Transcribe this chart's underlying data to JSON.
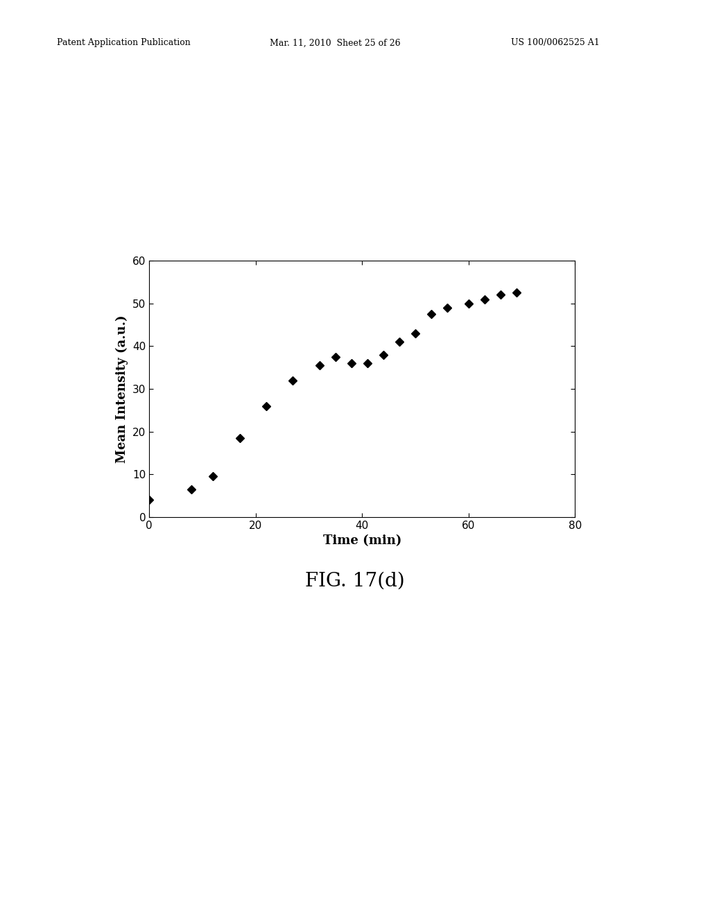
{
  "x": [
    0,
    8,
    12,
    17,
    22,
    27,
    32,
    35,
    38,
    41,
    44,
    47,
    50,
    53,
    56,
    60,
    63,
    66,
    69
  ],
  "y": [
    4,
    6.5,
    9.5,
    18.5,
    26,
    32,
    35.5,
    37.5,
    36,
    36,
    38,
    41,
    43,
    47.5,
    49,
    50,
    51,
    52,
    52.5
  ],
  "xlabel": "Time (min)",
  "ylabel": "Mean Intensity (a.u.)",
  "fig_label": "FIG. 17(d)",
  "header_left": "Patent Application Publication",
  "header_center": "Mar. 11, 2010  Sheet 25 of 26",
  "header_right": "US 100/0062525 A1",
  "xlim": [
    0,
    80
  ],
  "ylim": [
    0,
    60
  ],
  "xticks": [
    0,
    20,
    40,
    60,
    80
  ],
  "yticks": [
    0,
    10,
    20,
    30,
    40,
    50,
    60
  ],
  "marker": "D",
  "marker_color": "#000000",
  "marker_size": 6,
  "background_color": "#ffffff",
  "xlabel_fontsize": 13,
  "ylabel_fontsize": 13,
  "tick_fontsize": 11,
  "fig_label_fontsize": 20,
  "header_fontsize": 9
}
